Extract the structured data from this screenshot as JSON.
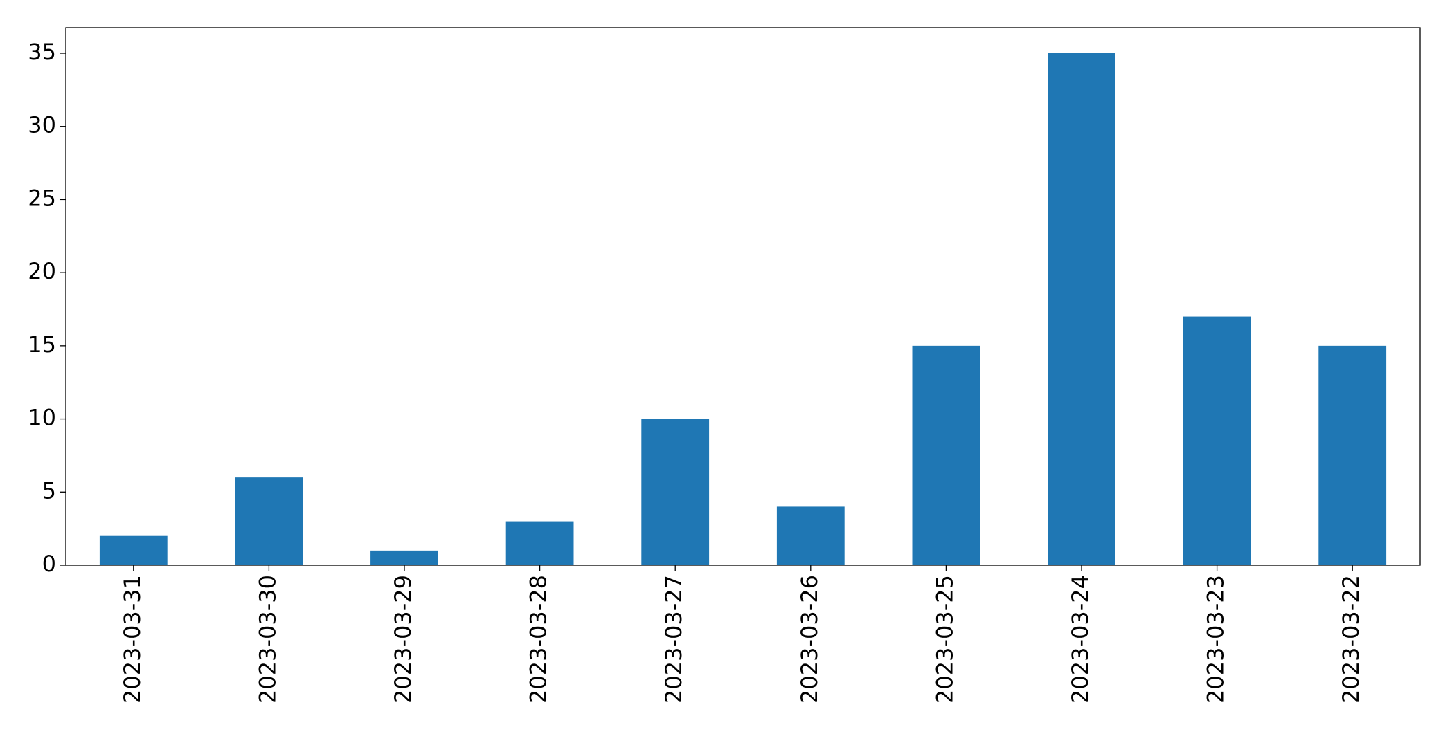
{
  "chart_data": {
    "type": "bar",
    "categories": [
      "2023-03-31",
      "2023-03-30",
      "2023-03-29",
      "2023-03-28",
      "2023-03-27",
      "2023-03-26",
      "2023-03-25",
      "2023-03-24",
      "2023-03-23",
      "2023-03-22"
    ],
    "values": [
      2,
      6,
      1,
      3,
      10,
      4,
      15,
      35,
      17,
      15
    ],
    "color": "#1f77b4",
    "ylim": [
      0,
      36.75
    ],
    "yticks": [
      0,
      5,
      10,
      15,
      20,
      25,
      30,
      35
    ],
    "grid": false
  }
}
